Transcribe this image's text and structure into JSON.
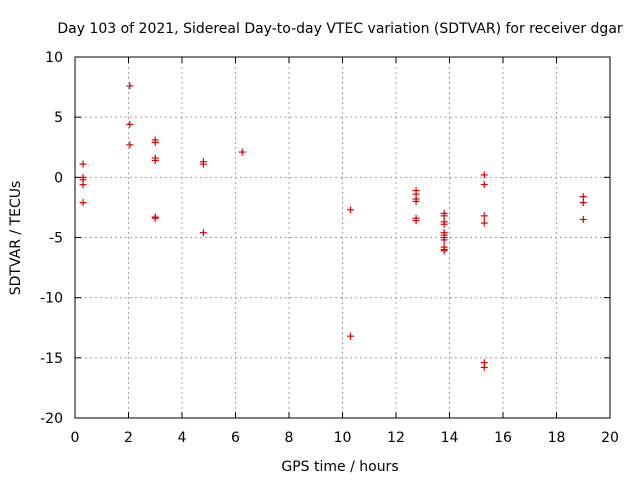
{
  "chart_data": {
    "type": "scatter",
    "title": "Day 103 of 2021, Sidereal Day-to-day VTEC variation (SDTVAR) for receiver dgar",
    "xlabel": "GPS time / hours",
    "ylabel": "SDTVAR / TECUs",
    "xlim": [
      0,
      20
    ],
    "ylim": [
      -20,
      10
    ],
    "x_ticks": [
      0,
      2,
      4,
      6,
      8,
      10,
      12,
      14,
      16,
      18,
      20
    ],
    "y_ticks": [
      10,
      5,
      0,
      -5,
      -10,
      -15,
      -20
    ],
    "grid": true,
    "marker": "+",
    "color": "#e00000",
    "series": [
      {
        "name": "SDTVAR",
        "points": [
          [
            0.3,
            1.1
          ],
          [
            0.3,
            0.0
          ],
          [
            0.3,
            -0.2
          ],
          [
            0.3,
            -0.6
          ],
          [
            0.3,
            -2.1
          ],
          [
            2.05,
            7.6
          ],
          [
            2.05,
            4.4
          ],
          [
            2.05,
            2.7
          ],
          [
            3.0,
            3.1
          ],
          [
            3.0,
            2.9
          ],
          [
            3.0,
            1.6
          ],
          [
            3.0,
            1.4
          ],
          [
            3.0,
            -3.3
          ],
          [
            3.0,
            -3.4
          ],
          [
            4.8,
            1.3
          ],
          [
            4.8,
            1.1
          ],
          [
            4.8,
            -4.6
          ],
          [
            6.25,
            2.1
          ],
          [
            10.3,
            -2.7
          ],
          [
            10.3,
            -13.2
          ],
          [
            12.75,
            -1.1
          ],
          [
            12.75,
            -1.4
          ],
          [
            12.75,
            -1.8
          ],
          [
            12.75,
            -2.0
          ],
          [
            12.75,
            -3.4
          ],
          [
            12.75,
            -3.6
          ],
          [
            13.8,
            -3.0
          ],
          [
            13.8,
            -3.2
          ],
          [
            13.8,
            -3.7
          ],
          [
            13.8,
            -3.9
          ],
          [
            13.8,
            -4.6
          ],
          [
            13.8,
            -4.8
          ],
          [
            13.8,
            -5.0
          ],
          [
            13.8,
            -5.2
          ],
          [
            13.8,
            -5.8
          ],
          [
            13.8,
            -6.0
          ],
          [
            13.8,
            -6.1
          ],
          [
            15.3,
            0.2
          ],
          [
            15.3,
            -0.6
          ],
          [
            15.3,
            -3.2
          ],
          [
            15.3,
            -3.8
          ],
          [
            15.3,
            -15.4
          ],
          [
            15.3,
            -15.8
          ],
          [
            19.0,
            -1.6
          ],
          [
            19.0,
            -2.1
          ],
          [
            19.0,
            -3.5
          ]
        ]
      }
    ]
  }
}
